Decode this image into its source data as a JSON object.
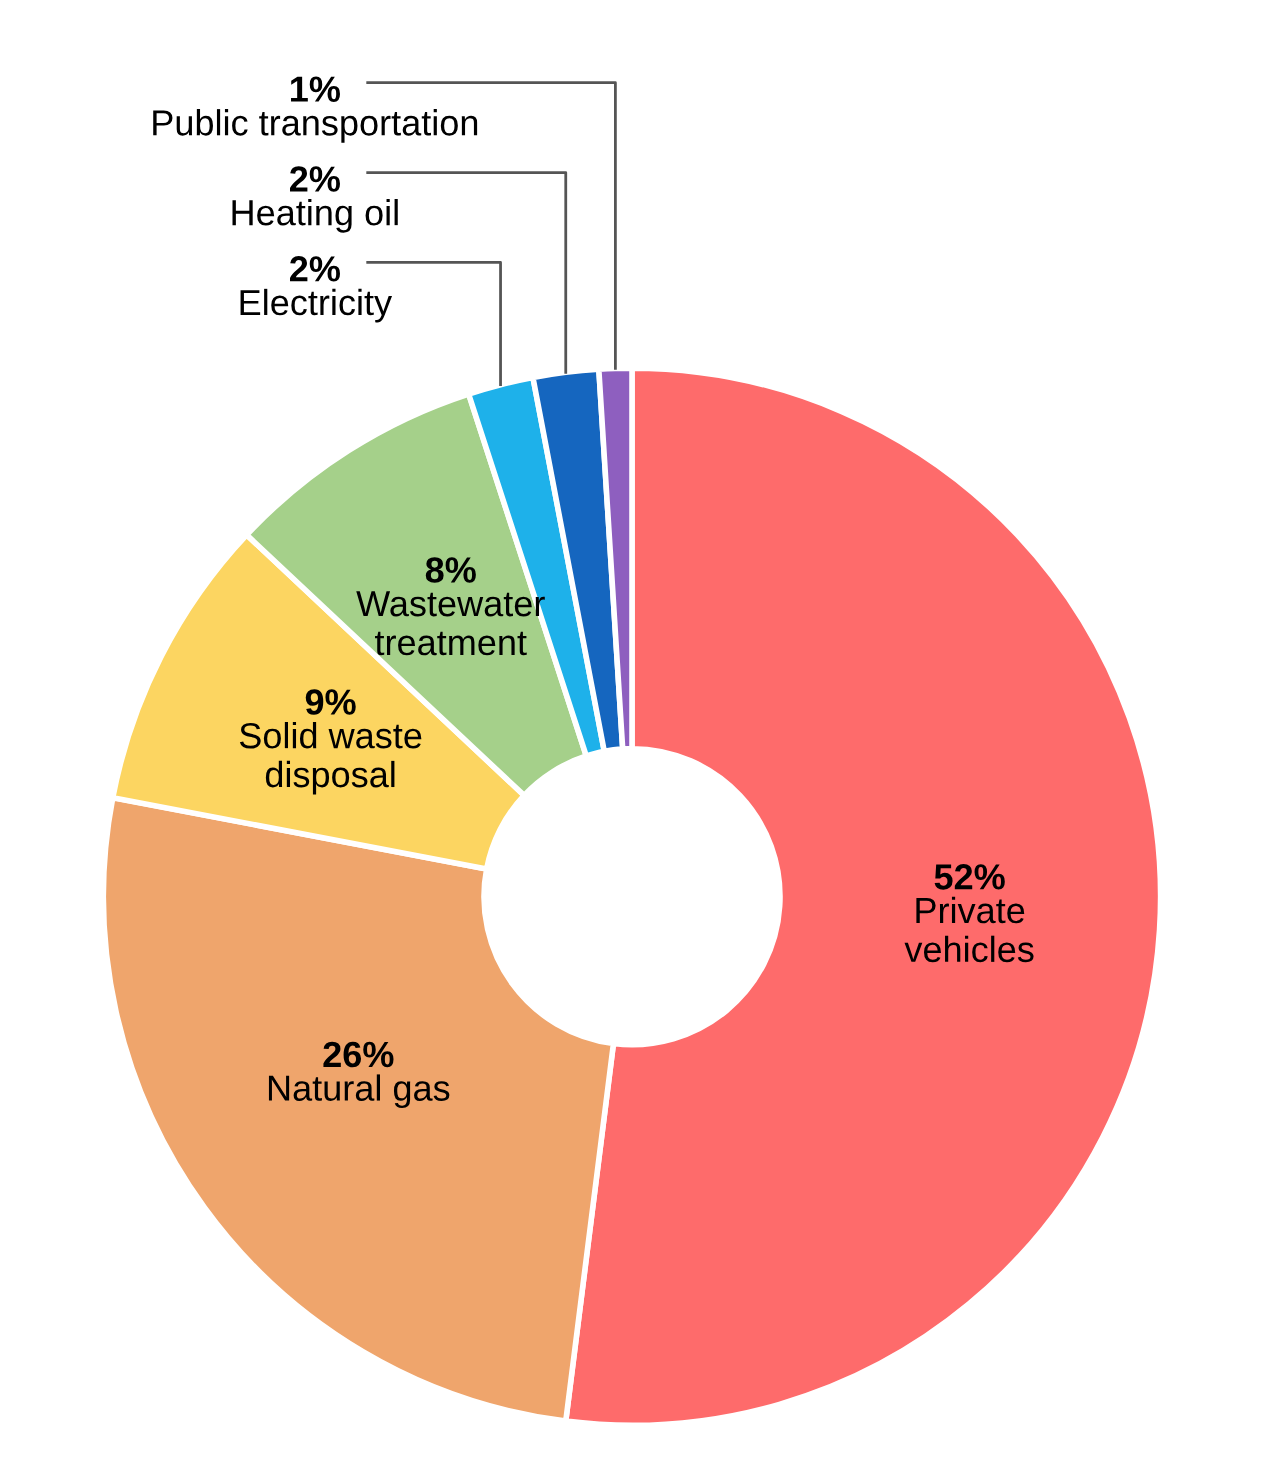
{
  "chart_data": {
    "type": "donut",
    "categories": [
      "Private\nvehicles",
      "Natural gas",
      "Solid waste\ndisposal",
      "Wastewater\ntreatment",
      "Electricity",
      "Heating oil",
      "Public transportation"
    ],
    "values": [
      52,
      26,
      9,
      8,
      2,
      2,
      1
    ],
    "colors": [
      "#fe6b6b",
      "#efa56c",
      "#fcd561",
      "#a5d08a",
      "#1eb1ea",
      "#1566bf",
      "#8e5fbf"
    ],
    "value_labels": [
      "52%",
      "26%",
      "9%",
      "8%",
      "2%",
      "2%",
      "1%"
    ],
    "legend": false
  }
}
